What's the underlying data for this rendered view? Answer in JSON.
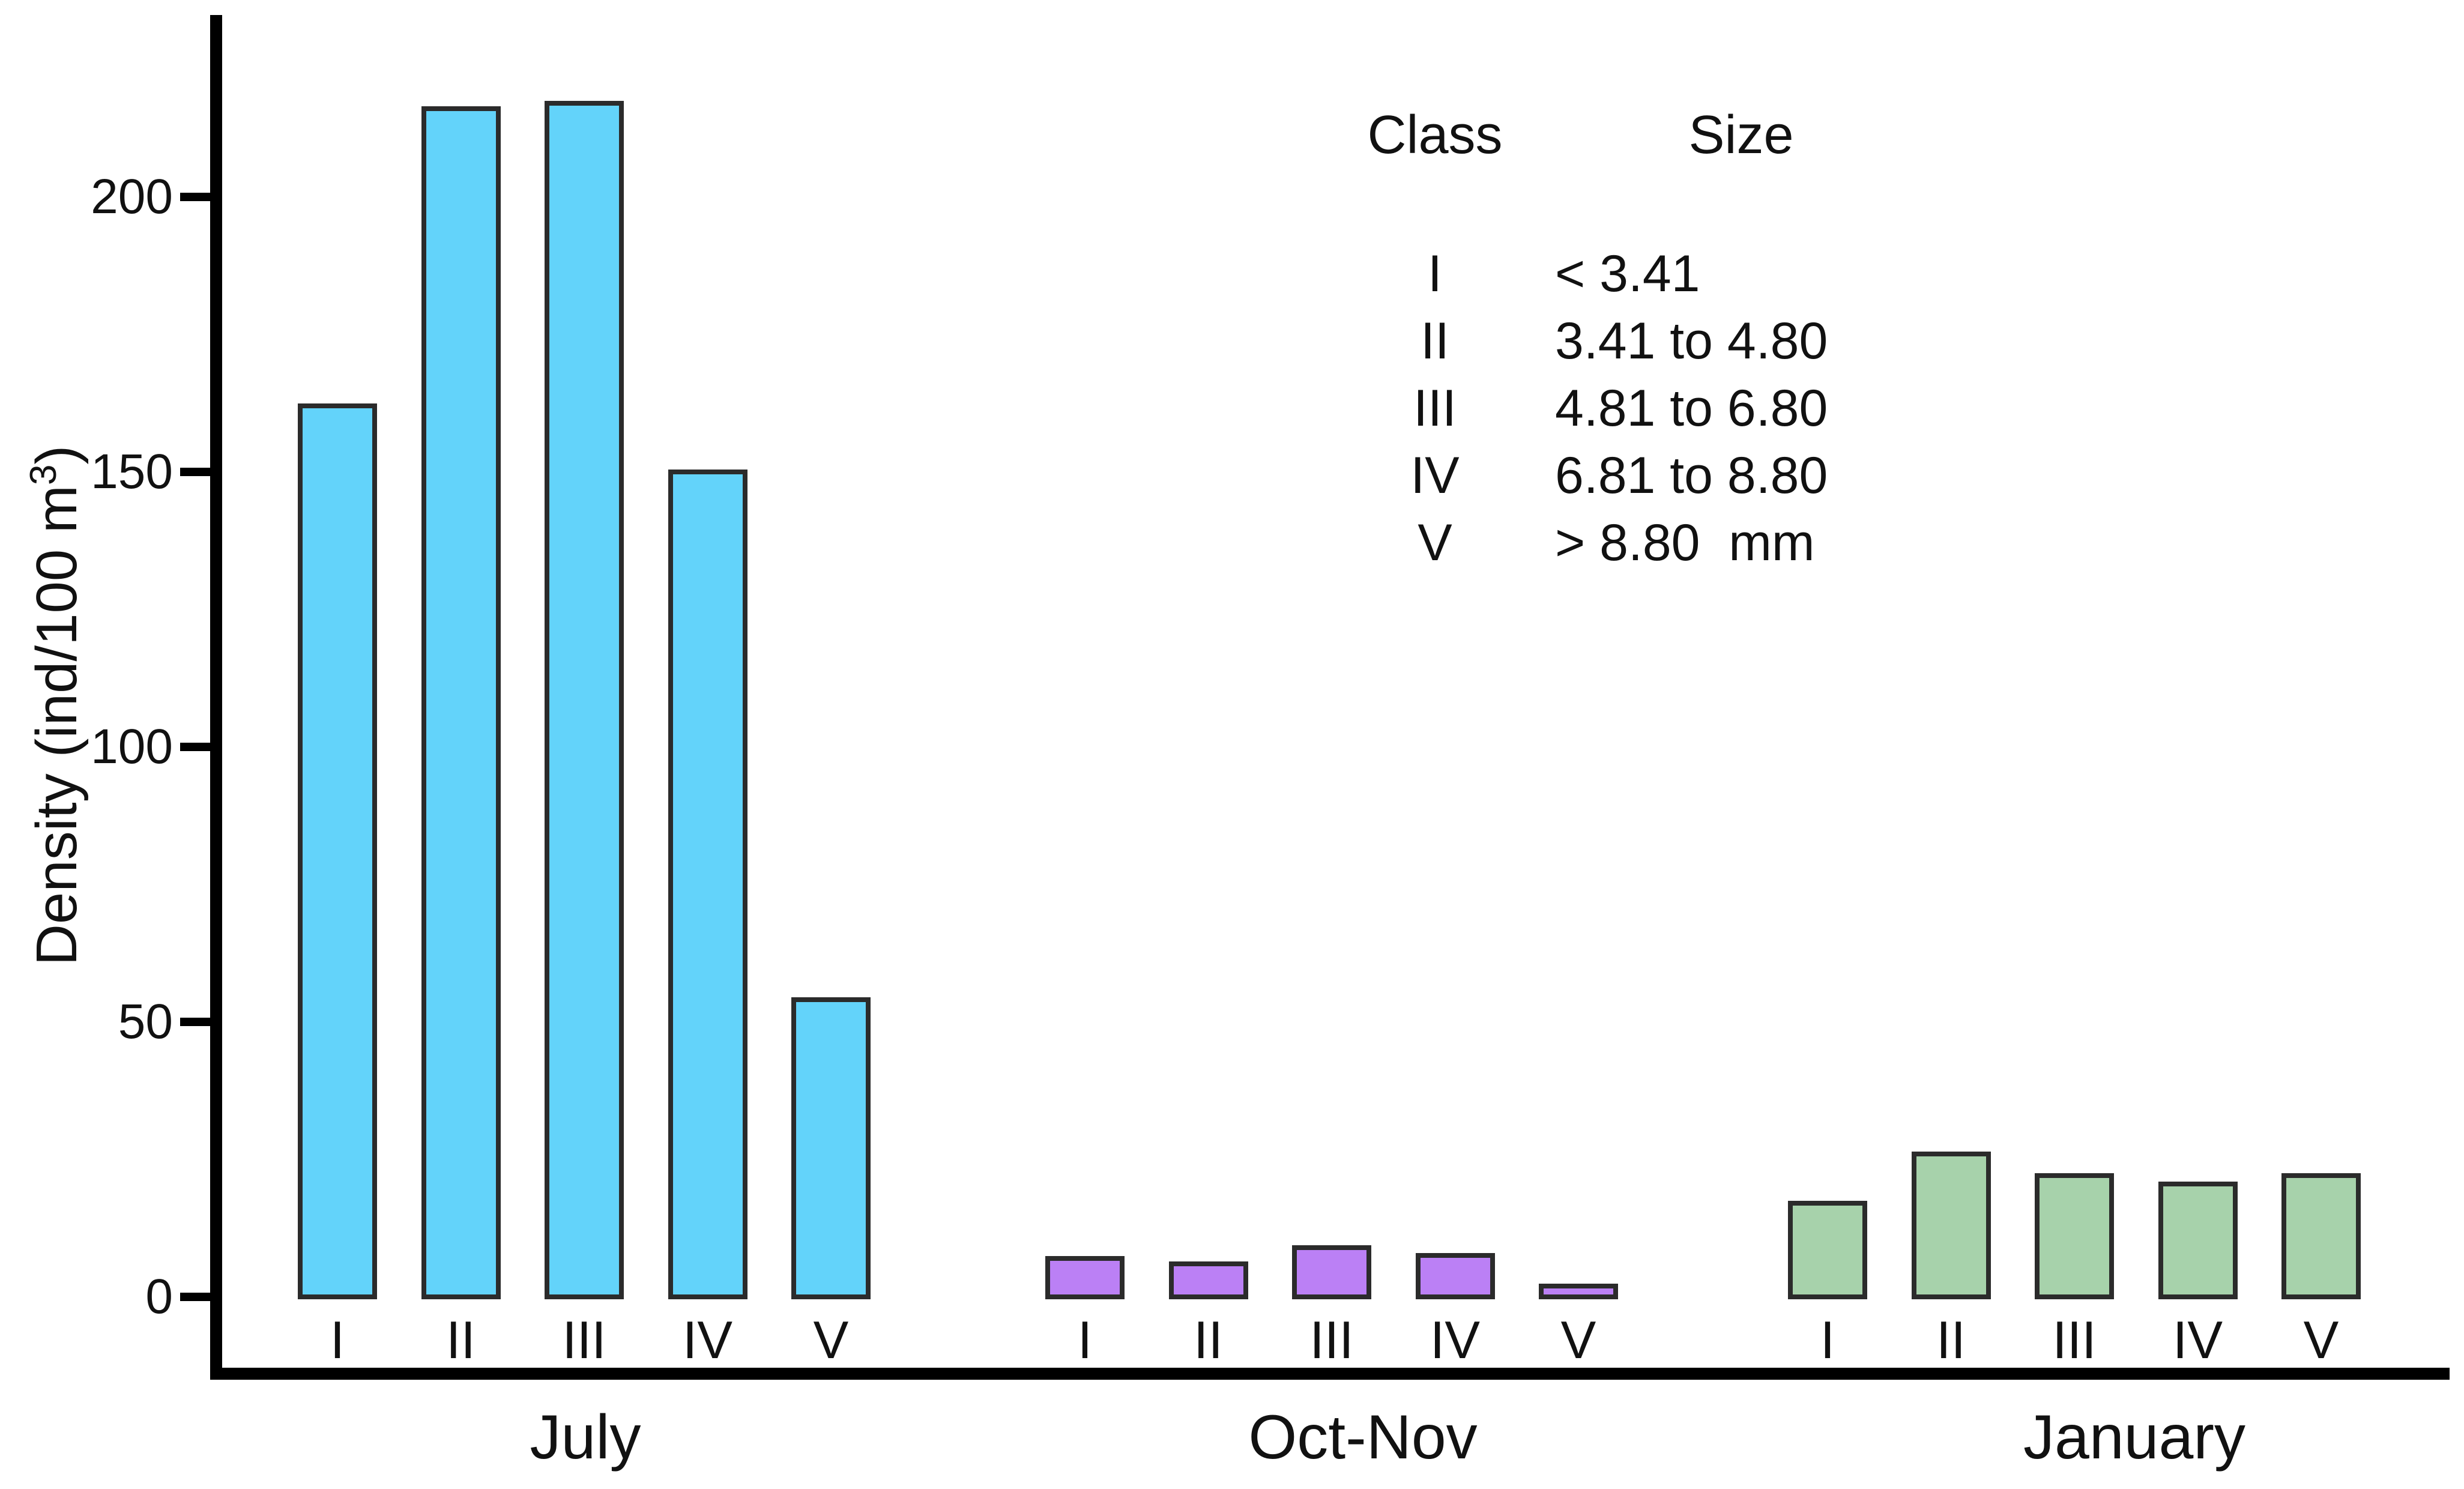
{
  "figure": {
    "ylabel_prefix": "Density (ind/100 m",
    "ylabel_sup": "3",
    "ylabel_suffix": ")"
  },
  "legend": {
    "class_header": "Class",
    "size_header": "Size"
  },
  "chart_data": {
    "type": "bar",
    "title": "",
    "xlabel": "",
    "ylabel": "Density (ind/100 m3)",
    "ylim": [
      0,
      233
    ],
    "yticks": [
      0,
      50,
      100,
      150,
      200
    ],
    "grid": false,
    "categories": [
      "I",
      "II",
      "III",
      "IV",
      "V"
    ],
    "series": [
      {
        "name": "July",
        "color": "#63d3fa",
        "values": [
          162,
          216,
          217,
          150,
          54
        ]
      },
      {
        "name": "Oct-Nov",
        "color": "#bb80f5",
        "values": [
          7,
          6,
          9,
          7.5,
          2
        ]
      },
      {
        "name": "January",
        "color": "#a7d2ab",
        "values": [
          17,
          26,
          22,
          20.5,
          22
        ]
      }
    ],
    "bar_border_color": "#2b2b2b",
    "legend": {
      "position": "upper right",
      "col_headers": [
        "Class",
        "Size"
      ],
      "rows": [
        [
          "I",
          "< 3.41"
        ],
        [
          "II",
          "3.41 to 4.80"
        ],
        [
          "III",
          "4.81 to 6.80"
        ],
        [
          "IV",
          "6.81 to 8.80"
        ],
        [
          "V",
          "> 8.80  mm"
        ]
      ]
    }
  }
}
